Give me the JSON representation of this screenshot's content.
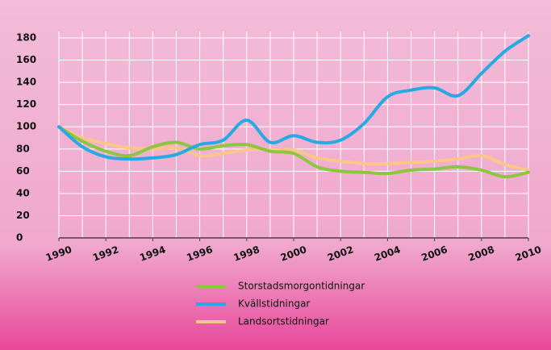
{
  "chart_data": {
    "type": "line",
    "x": [
      1990,
      1991,
      1992,
      1993,
      1994,
      1995,
      1996,
      1997,
      1998,
      1999,
      2000,
      2001,
      2002,
      2003,
      2004,
      2005,
      2006,
      2007,
      2008,
      2009,
      2010
    ],
    "series": [
      {
        "name": "Storstadsmorgontidningar",
        "color": "#8dc63f",
        "values": [
          100,
          87,
          78,
          74,
          82,
          86,
          80,
          83,
          84,
          78,
          76,
          64,
          60,
          59,
          58,
          61,
          62,
          64,
          61,
          55,
          59
        ]
      },
      {
        "name": "Kvällstidningar",
        "color": "#27aae1",
        "values": [
          100,
          82,
          73,
          71,
          72,
          75,
          84,
          88,
          106,
          86,
          92,
          86,
          88,
          103,
          127,
          133,
          135,
          128,
          148,
          168,
          182
        ]
      },
      {
        "name": "Landsortstidningar",
        "color": "#fdc689",
        "values": [
          100,
          90,
          85,
          81,
          80,
          81,
          74,
          76,
          79,
          79,
          79,
          72,
          69,
          67,
          67,
          68,
          69,
          71,
          74,
          66,
          61
        ]
      }
    ],
    "xlim": [
      1990,
      2010
    ],
    "xticks": [
      1990,
      1992,
      1994,
      1996,
      1998,
      2000,
      2002,
      2004,
      2006,
      2008,
      2010
    ],
    "ylim": [
      0,
      180
    ],
    "yticks": [
      0,
      20,
      40,
      60,
      80,
      100,
      120,
      140,
      160,
      180
    ],
    "grid": true
  }
}
